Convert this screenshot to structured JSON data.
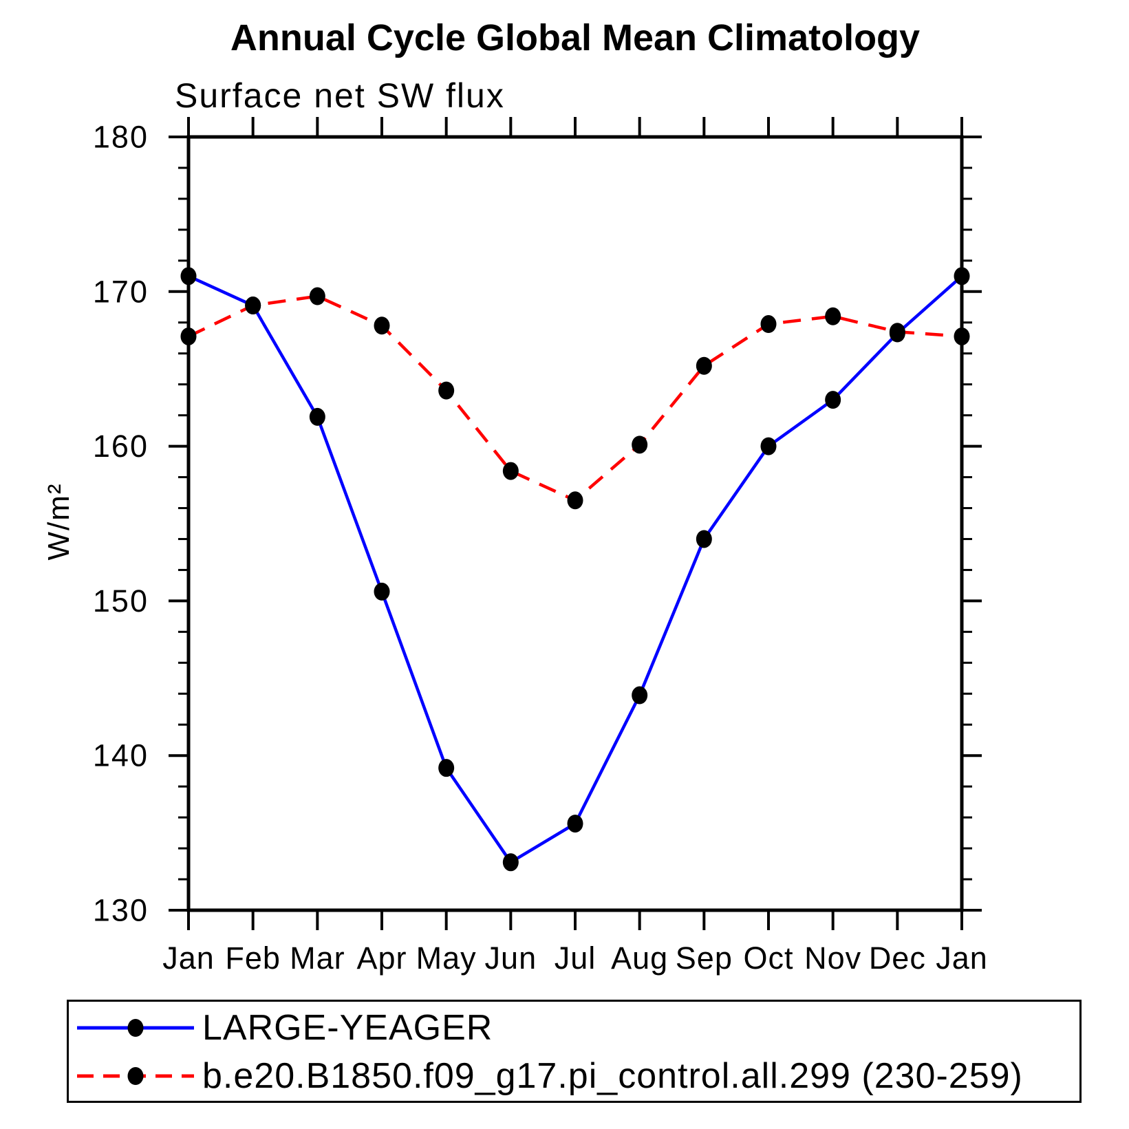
{
  "chart_data": {
    "type": "line",
    "title": "Annual Cycle Global Mean Climatology",
    "subtitle": "Surface net SW flux",
    "ylabel": "W/m²",
    "xlabel": "",
    "ylim": [
      130,
      180
    ],
    "ytick_major": [
      130,
      140,
      150,
      160,
      170,
      180
    ],
    "ytick_minor_step": 2,
    "x_labels": [
      "Jan",
      "Feb",
      "Mar",
      "Apr",
      "May",
      "Jun",
      "Jul",
      "Aug",
      "Sep",
      "Oct",
      "Nov",
      "Dec",
      "Jan"
    ],
    "grid": false,
    "legend_position": "bottom",
    "background_color": "#ffffff",
    "axis_color": "#000000",
    "marker_color": "#000000",
    "series": [
      {
        "name": "LARGE-YEAGER",
        "color": "#0000ff",
        "line_style": "solid",
        "marker": "circle",
        "values": [
          171.0,
          169.1,
          161.9,
          150.6,
          139.2,
          133.1,
          135.6,
          143.9,
          154.0,
          160.0,
          163.0,
          167.3,
          171.0
        ]
      },
      {
        "name": "b.e20.B1850.f09_g17.pi_control.all.299 (230-259)",
        "color": "#ff0000",
        "line_style": "dashed",
        "marker": "circle",
        "values": [
          167.1,
          169.1,
          169.7,
          167.8,
          163.6,
          158.4,
          156.5,
          160.1,
          165.2,
          167.9,
          168.4,
          167.4,
          167.1
        ]
      }
    ]
  }
}
